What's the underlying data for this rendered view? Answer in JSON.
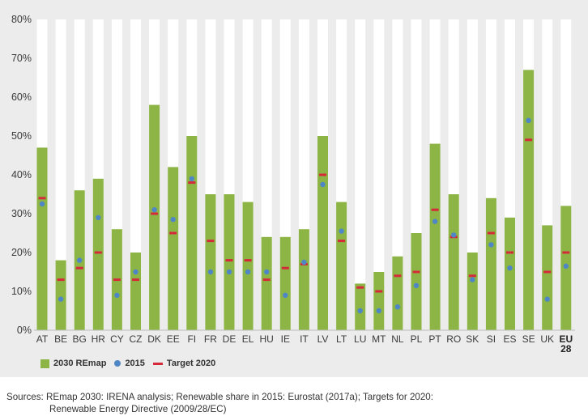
{
  "chart_data": {
    "type": "bar",
    "categories": [
      "AT",
      "BE",
      "BG",
      "HR",
      "CY",
      "CZ",
      "DK",
      "EE",
      "FI",
      "FR",
      "DE",
      "EL",
      "HU",
      "IE",
      "IT",
      "LV",
      "LT",
      "LU",
      "MT",
      "NL",
      "PL",
      "PT",
      "RO",
      "SK",
      "SI",
      "ES",
      "SE",
      "UK",
      "EU 28"
    ],
    "bold_categories": [
      "EU 28"
    ],
    "series": [
      {
        "name": "2030 REmap",
        "kind": "bar",
        "color": "#8db545",
        "values": [
          47,
          18,
          36,
          39,
          26,
          20,
          58,
          42,
          50,
          35,
          35,
          33,
          24,
          24,
          26,
          50,
          33,
          12,
          15,
          19,
          25,
          48,
          35,
          20,
          34,
          29,
          67,
          27,
          32
        ]
      },
      {
        "name": "2015",
        "kind": "dot",
        "color": "#4f86c6",
        "values": [
          32.5,
          8,
          18,
          29,
          9,
          15,
          31,
          28.5,
          39,
          15,
          15,
          15,
          15,
          9,
          17.5,
          37.5,
          25.5,
          5,
          5,
          6,
          11.5,
          28,
          24.5,
          13,
          22,
          16,
          54,
          8,
          16.5
        ]
      },
      {
        "name": "Target 2020",
        "kind": "dash",
        "color": "#d42a3a",
        "values": [
          34,
          13,
          16,
          20,
          13,
          13,
          30,
          25,
          38,
          23,
          18,
          18,
          13,
          16,
          17,
          40,
          23,
          11,
          10,
          14,
          15,
          31,
          24,
          14,
          25,
          20,
          49,
          15,
          20
        ]
      }
    ],
    "ylim": [
      0,
      80
    ],
    "yticks": [
      "0%",
      "10%",
      "20%",
      "30%",
      "40%",
      "50%",
      "60%",
      "70%",
      "80%"
    ],
    "background_bar_to": 80,
    "grid": false,
    "legend_position": "bottom-left",
    "colors": {
      "panel": "#ececec",
      "column_bg": "#ffffff"
    }
  },
  "source_lines": [
    "Sources: REmap 2030: IRENA analysis; Renewable share in 2015: Eurostat (2017a); Targets for 2020:",
    "Renewable Energy Directive (2009/28/EC)"
  ]
}
